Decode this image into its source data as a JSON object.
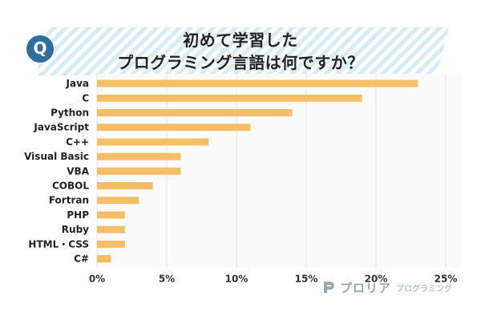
{
  "banner": {
    "badge": "Q",
    "title_line1": "初めて学習した",
    "title_line2": "プログラミング言語は何ですか？",
    "color_stripe": "#d8ecf8",
    "color_badge": "#2f6e9e"
  },
  "brand": {
    "name": "プロリア",
    "subtitle": "プログラミング",
    "icon": "p-logo-icon"
  },
  "chart_data": {
    "type": "bar",
    "orientation": "horizontal",
    "categories": [
      "Java",
      "C",
      "Python",
      "JavaScript",
      "C++",
      "Visual Basic",
      "VBA",
      "COBOL",
      "Fortran",
      "PHP",
      "Ruby",
      "HTML・CSS",
      "C#"
    ],
    "values": [
      23,
      19,
      14,
      11,
      8,
      6,
      6,
      4,
      3,
      2,
      2,
      2,
      1
    ],
    "xlim": [
      0,
      25
    ],
    "xticks": [
      0,
      5,
      10,
      15,
      20,
      25
    ],
    "xtick_labels": [
      "0%",
      "5%",
      "10%",
      "15%",
      "20%",
      "25%"
    ],
    "grid": "vertical",
    "bar_color": "#f6be69",
    "grid_color": "#e6e6e6"
  }
}
